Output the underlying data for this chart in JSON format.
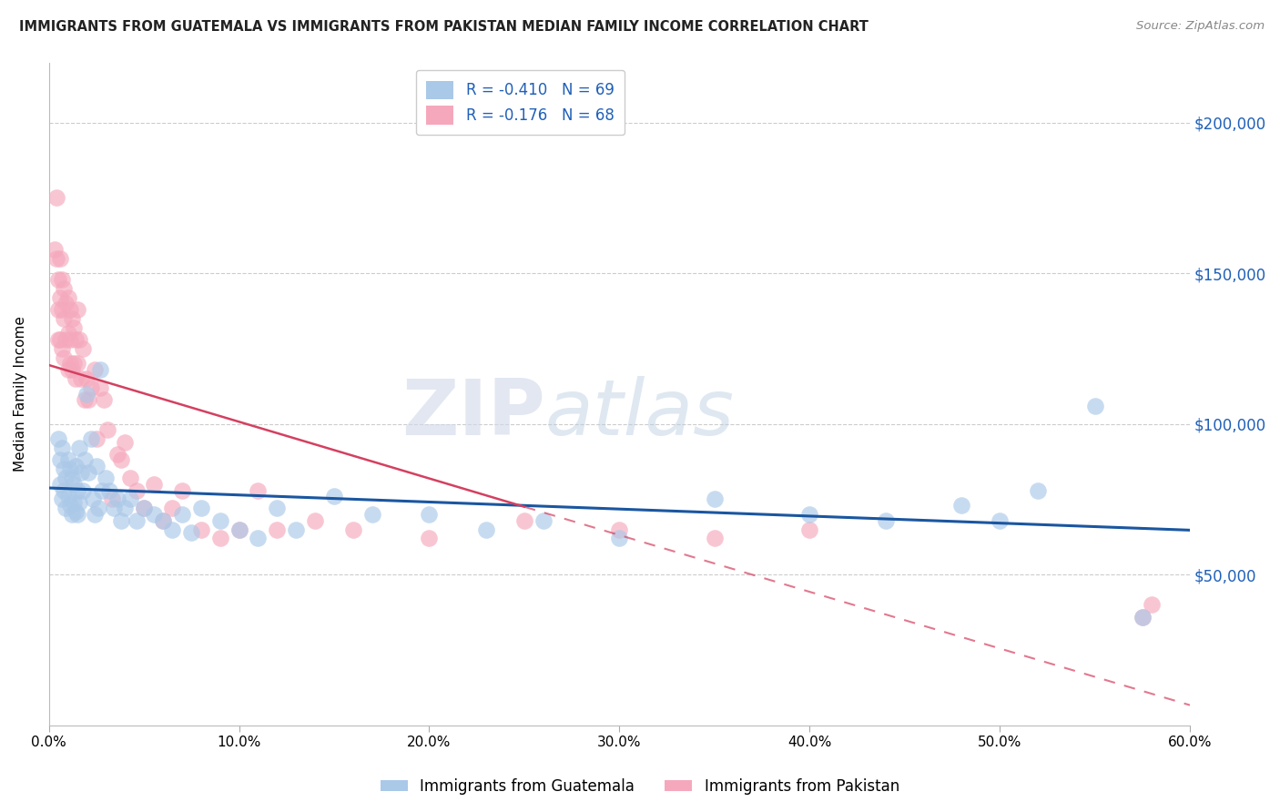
{
  "title": "IMMIGRANTS FROM GUATEMALA VS IMMIGRANTS FROM PAKISTAN MEDIAN FAMILY INCOME CORRELATION CHART",
  "source": "Source: ZipAtlas.com",
  "ylabel": "Median Family Income",
  "watermark_zip": "ZIP",
  "watermark_atlas": "atlas",
  "r_guatemala": "-0.410",
  "n_guatemala": "69",
  "r_pakistan": "-0.176",
  "n_pakistan": "68",
  "guatemala_color": "#aac8e8",
  "pakistan_color": "#f5a8bc",
  "line_guatemala_color": "#1a56a0",
  "line_pakistan_color": "#d44060",
  "ytick_labels": [
    "$50,000",
    "$100,000",
    "$150,000",
    "$200,000"
  ],
  "ytick_values": [
    50000,
    100000,
    150000,
    200000
  ],
  "xlim": [
    0.0,
    0.6
  ],
  "ylim": [
    0,
    220000
  ],
  "xticks": [
    0.0,
    0.1,
    0.2,
    0.3,
    0.4,
    0.5,
    0.6
  ],
  "guatemala_x": [
    0.005,
    0.006,
    0.006,
    0.007,
    0.007,
    0.008,
    0.008,
    0.009,
    0.009,
    0.01,
    0.01,
    0.011,
    0.011,
    0.012,
    0.012,
    0.013,
    0.013,
    0.014,
    0.014,
    0.015,
    0.015,
    0.016,
    0.016,
    0.017,
    0.018,
    0.019,
    0.02,
    0.021,
    0.022,
    0.023,
    0.024,
    0.025,
    0.026,
    0.027,
    0.028,
    0.03,
    0.032,
    0.034,
    0.036,
    0.038,
    0.04,
    0.043,
    0.046,
    0.05,
    0.055,
    0.06,
    0.065,
    0.07,
    0.075,
    0.08,
    0.09,
    0.1,
    0.11,
    0.12,
    0.13,
    0.15,
    0.17,
    0.2,
    0.23,
    0.26,
    0.3,
    0.35,
    0.4,
    0.44,
    0.48,
    0.5,
    0.52,
    0.55,
    0.575
  ],
  "guatemala_y": [
    95000,
    88000,
    80000,
    92000,
    75000,
    85000,
    78000,
    82000,
    72000,
    88000,
    76000,
    85000,
    73000,
    82000,
    70000,
    80000,
    74000,
    86000,
    71000,
    78000,
    70000,
    92000,
    74000,
    84000,
    78000,
    88000,
    110000,
    84000,
    95000,
    75000,
    70000,
    86000,
    72000,
    118000,
    78000,
    82000,
    78000,
    72000,
    75000,
    68000,
    72000,
    75000,
    68000,
    72000,
    70000,
    68000,
    65000,
    70000,
    64000,
    72000,
    68000,
    65000,
    62000,
    72000,
    65000,
    76000,
    70000,
    70000,
    65000,
    68000,
    62000,
    75000,
    70000,
    68000,
    73000,
    68000,
    78000,
    106000,
    36000
  ],
  "pakistan_x": [
    0.003,
    0.004,
    0.004,
    0.005,
    0.005,
    0.005,
    0.006,
    0.006,
    0.006,
    0.007,
    0.007,
    0.007,
    0.008,
    0.008,
    0.008,
    0.009,
    0.009,
    0.01,
    0.01,
    0.01,
    0.011,
    0.011,
    0.011,
    0.012,
    0.012,
    0.013,
    0.013,
    0.014,
    0.014,
    0.015,
    0.015,
    0.016,
    0.017,
    0.018,
    0.019,
    0.02,
    0.021,
    0.022,
    0.024,
    0.025,
    0.027,
    0.029,
    0.031,
    0.033,
    0.036,
    0.038,
    0.04,
    0.043,
    0.046,
    0.05,
    0.055,
    0.06,
    0.065,
    0.07,
    0.08,
    0.09,
    0.1,
    0.11,
    0.12,
    0.14,
    0.16,
    0.2,
    0.25,
    0.3,
    0.35,
    0.4,
    0.575,
    0.58
  ],
  "pakistan_y": [
    158000,
    175000,
    155000,
    148000,
    138000,
    128000,
    155000,
    142000,
    128000,
    148000,
    138000,
    125000,
    145000,
    135000,
    122000,
    140000,
    128000,
    142000,
    130000,
    118000,
    138000,
    128000,
    120000,
    135000,
    118000,
    132000,
    120000,
    128000,
    115000,
    138000,
    120000,
    128000,
    115000,
    125000,
    108000,
    115000,
    108000,
    112000,
    118000,
    95000,
    112000,
    108000,
    98000,
    75000,
    90000,
    88000,
    94000,
    82000,
    78000,
    72000,
    80000,
    68000,
    72000,
    78000,
    65000,
    62000,
    65000,
    78000,
    65000,
    68000,
    65000,
    62000,
    68000,
    65000,
    62000,
    65000,
    36000,
    40000
  ]
}
